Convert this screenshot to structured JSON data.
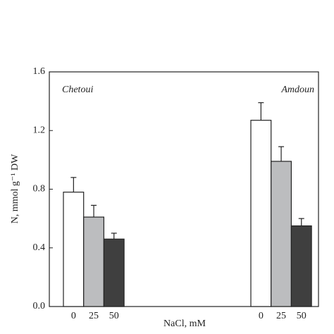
{
  "chart_data": {
    "type": "bar",
    "categories": [
      "Chetoui",
      "Amdoun"
    ],
    "series": [
      {
        "name": "0",
        "color": "#ffffff",
        "values": [
          0.78,
          1.27
        ],
        "errors": [
          0.1,
          0.12
        ]
      },
      {
        "name": "25",
        "color": "#bcbdbf",
        "values": [
          0.61,
          0.99
        ],
        "errors": [
          0.08,
          0.1
        ]
      },
      {
        "name": "50",
        "color": "#3f3f3f",
        "values": [
          0.46,
          0.55
        ],
        "errors": [
          0.04,
          0.05
        ]
      }
    ],
    "xlabel": "NaCl, mM",
    "ylabel": "N, mmol g⁻¹ DW",
    "ylim": [
      0,
      1.6
    ],
    "yticks": [
      {
        "value": 0,
        "label": "0.0"
      },
      0.4,
      0.8,
      1.2,
      1.6
    ]
  }
}
